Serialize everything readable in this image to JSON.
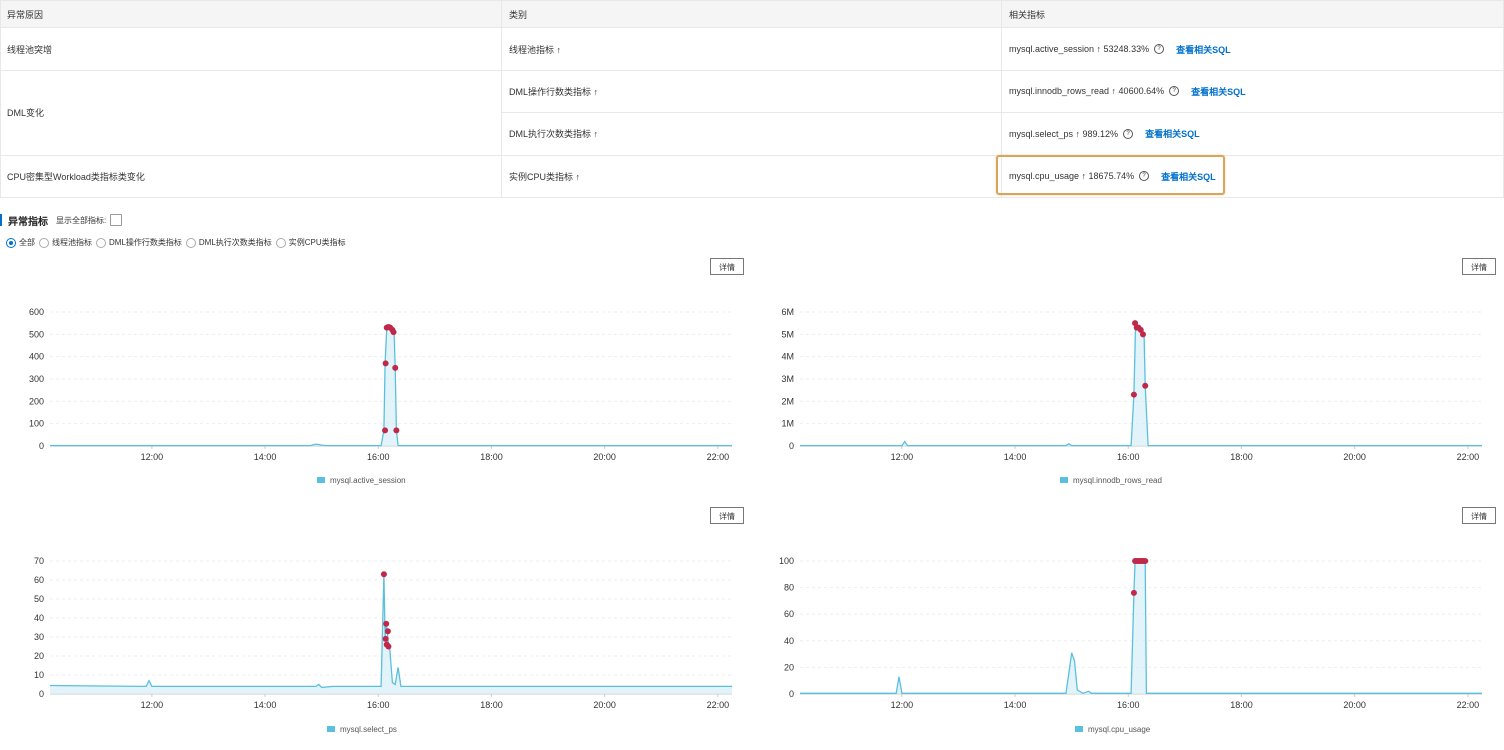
{
  "table": {
    "headers": [
      "异常原因",
      "类别",
      "相关指标"
    ],
    "rows": [
      {
        "reason": "线程池突增",
        "category": "线程池指标 ↑",
        "metric": "mysql.active_session ↑ 53248.33%"
      },
      {
        "reason": "DML变化",
        "category": "DML操作行数类指标 ↑",
        "metric": "mysql.innodb_rows_read ↑ 40600.64%"
      },
      {
        "reason": "",
        "category": "DML执行次数类指标 ↑",
        "metric": "mysql.select_ps ↑ 989.12%"
      },
      {
        "reason": "CPU密集型Workload类指标类变化",
        "category": "实例CPU类指标 ↑",
        "metric": "mysql.cpu_usage ↑ 18675.74%"
      }
    ],
    "link_label": "查看相关SQL",
    "help_glyph": "?"
  },
  "section": {
    "title": "异常指标",
    "show_all_label": "显示全部指标:"
  },
  "filters": [
    "全部",
    "线程池指标",
    "DML操作行数类指标",
    "DML执行次数类指标",
    "实例CPU类指标"
  ],
  "selected_filter": "全部",
  "detail_label": "详情",
  "colors": {
    "line": "#5bc0de",
    "fill": "#d6eef8",
    "anomaly": "#c0284a",
    "link": "#0070cc",
    "highlight": "#d9a55a"
  },
  "chart_data": [
    {
      "type": "line",
      "series": [
        {
          "name": "mysql.active_session"
        }
      ],
      "x_ticks": [
        "12:00",
        "14:00",
        "16:00",
        "18:00",
        "20:00",
        "22:00"
      ],
      "y_ticks": [
        "0",
        "100",
        "200",
        "300",
        "400",
        "500",
        "600"
      ],
      "ylim": [
        0,
        600
      ],
      "xlim_hours": [
        10.2,
        22.25
      ],
      "points": [
        [
          10.2,
          2
        ],
        [
          14.8,
          2
        ],
        [
          14.9,
          8
        ],
        [
          15.0,
          4
        ],
        [
          15.1,
          2
        ],
        [
          16.05,
          2
        ],
        [
          16.1,
          70
        ],
        [
          16.12,
          370
        ],
        [
          16.15,
          530
        ],
        [
          16.2,
          530
        ],
        [
          16.25,
          520
        ],
        [
          16.28,
          510
        ],
        [
          16.3,
          350
        ],
        [
          16.32,
          70
        ],
        [
          16.35,
          2
        ],
        [
          22.25,
          2
        ]
      ],
      "anomalies": [
        [
          16.12,
          70
        ],
        [
          16.13,
          370
        ],
        [
          16.15,
          530
        ],
        [
          16.17,
          532
        ],
        [
          16.19,
          532
        ],
        [
          16.21,
          530
        ],
        [
          16.25,
          520
        ],
        [
          16.27,
          510
        ],
        [
          16.3,
          350
        ],
        [
          16.32,
          70
        ]
      ]
    },
    {
      "type": "line",
      "series": [
        {
          "name": "mysql.innodb_rows_read"
        }
      ],
      "x_ticks": [
        "12:00",
        "14:00",
        "16:00",
        "18:00",
        "20:00",
        "22:00"
      ],
      "y_ticks": [
        "0",
        "1M",
        "2M",
        "3M",
        "4M",
        "5M",
        "6M"
      ],
      "ylim": [
        0,
        6000000
      ],
      "xlim_hours": [
        10.2,
        22.25
      ],
      "points": [
        [
          10.2,
          20000
        ],
        [
          12.0,
          20000
        ],
        [
          12.05,
          200000
        ],
        [
          12.1,
          20000
        ],
        [
          14.9,
          20000
        ],
        [
          14.95,
          100000
        ],
        [
          15.0,
          20000
        ],
        [
          16.05,
          20000
        ],
        [
          16.1,
          2300000
        ],
        [
          16.13,
          5500000
        ],
        [
          16.2,
          5300000
        ],
        [
          16.25,
          5200000
        ],
        [
          16.28,
          5000000
        ],
        [
          16.3,
          2700000
        ],
        [
          16.35,
          20000
        ],
        [
          22.25,
          20000
        ]
      ],
      "anomalies": [
        [
          16.1,
          2300000
        ],
        [
          16.12,
          5500000
        ],
        [
          16.15,
          5300000
        ],
        [
          16.18,
          5300000
        ],
        [
          16.22,
          5200000
        ],
        [
          16.26,
          5000000
        ],
        [
          16.3,
          2700000
        ]
      ]
    },
    {
      "type": "line",
      "series": [
        {
          "name": "mysql.select_ps"
        }
      ],
      "x_ticks": [
        "12:00",
        "14:00",
        "16:00",
        "18:00",
        "20:00",
        "22:00"
      ],
      "y_ticks": [
        "0",
        "10",
        "20",
        "30",
        "40",
        "50",
        "60",
        "70"
      ],
      "ylim": [
        0,
        70
      ],
      "xlim_hours": [
        10.2,
        22.25
      ],
      "points": [
        [
          10.2,
          4.5
        ],
        [
          11.9,
          4
        ],
        [
          11.95,
          7
        ],
        [
          12.0,
          4
        ],
        [
          14.9,
          4
        ],
        [
          14.95,
          5
        ],
        [
          15.0,
          3.5
        ],
        [
          15.2,
          4
        ],
        [
          16.05,
          4
        ],
        [
          16.1,
          63
        ],
        [
          16.12,
          30
        ],
        [
          16.14,
          37
        ],
        [
          16.16,
          33
        ],
        [
          16.18,
          26
        ],
        [
          16.2,
          25
        ],
        [
          16.25,
          6
        ],
        [
          16.3,
          5
        ],
        [
          16.35,
          14
        ],
        [
          16.4,
          4
        ],
        [
          22.25,
          4
        ]
      ],
      "anomalies": [
        [
          16.1,
          63
        ],
        [
          16.14,
          37
        ],
        [
          16.17,
          33
        ],
        [
          16.13,
          29
        ],
        [
          16.15,
          26
        ],
        [
          16.18,
          25
        ]
      ]
    },
    {
      "type": "line",
      "series": [
        {
          "name": "mysql.cpu_usage"
        }
      ],
      "x_ticks": [
        "12:00",
        "14:00",
        "16:00",
        "18:00",
        "20:00",
        "22:00"
      ],
      "y_ticks": [
        "0",
        "20",
        "40",
        "60",
        "80",
        "100"
      ],
      "ylim": [
        0,
        100
      ],
      "xlim_hours": [
        10.2,
        22.25
      ],
      "points": [
        [
          10.2,
          0.5
        ],
        [
          11.9,
          0.5
        ],
        [
          11.95,
          13
        ],
        [
          12.0,
          0.5
        ],
        [
          14.9,
          0.5
        ],
        [
          15.0,
          31
        ],
        [
          15.05,
          25
        ],
        [
          15.1,
          3
        ],
        [
          15.2,
          0.5
        ],
        [
          15.3,
          2
        ],
        [
          15.35,
          0.5
        ],
        [
          16.05,
          0.5
        ],
        [
          16.1,
          76
        ],
        [
          16.12,
          100
        ],
        [
          16.3,
          100
        ],
        [
          16.32,
          0.5
        ],
        [
          22.25,
          0.5
        ]
      ],
      "anomalies": [
        [
          16.1,
          76
        ],
        [
          16.12,
          100
        ],
        [
          16.15,
          100
        ],
        [
          16.18,
          100
        ],
        [
          16.21,
          100
        ],
        [
          16.24,
          100
        ],
        [
          16.27,
          100
        ],
        [
          16.3,
          100
        ]
      ]
    }
  ]
}
